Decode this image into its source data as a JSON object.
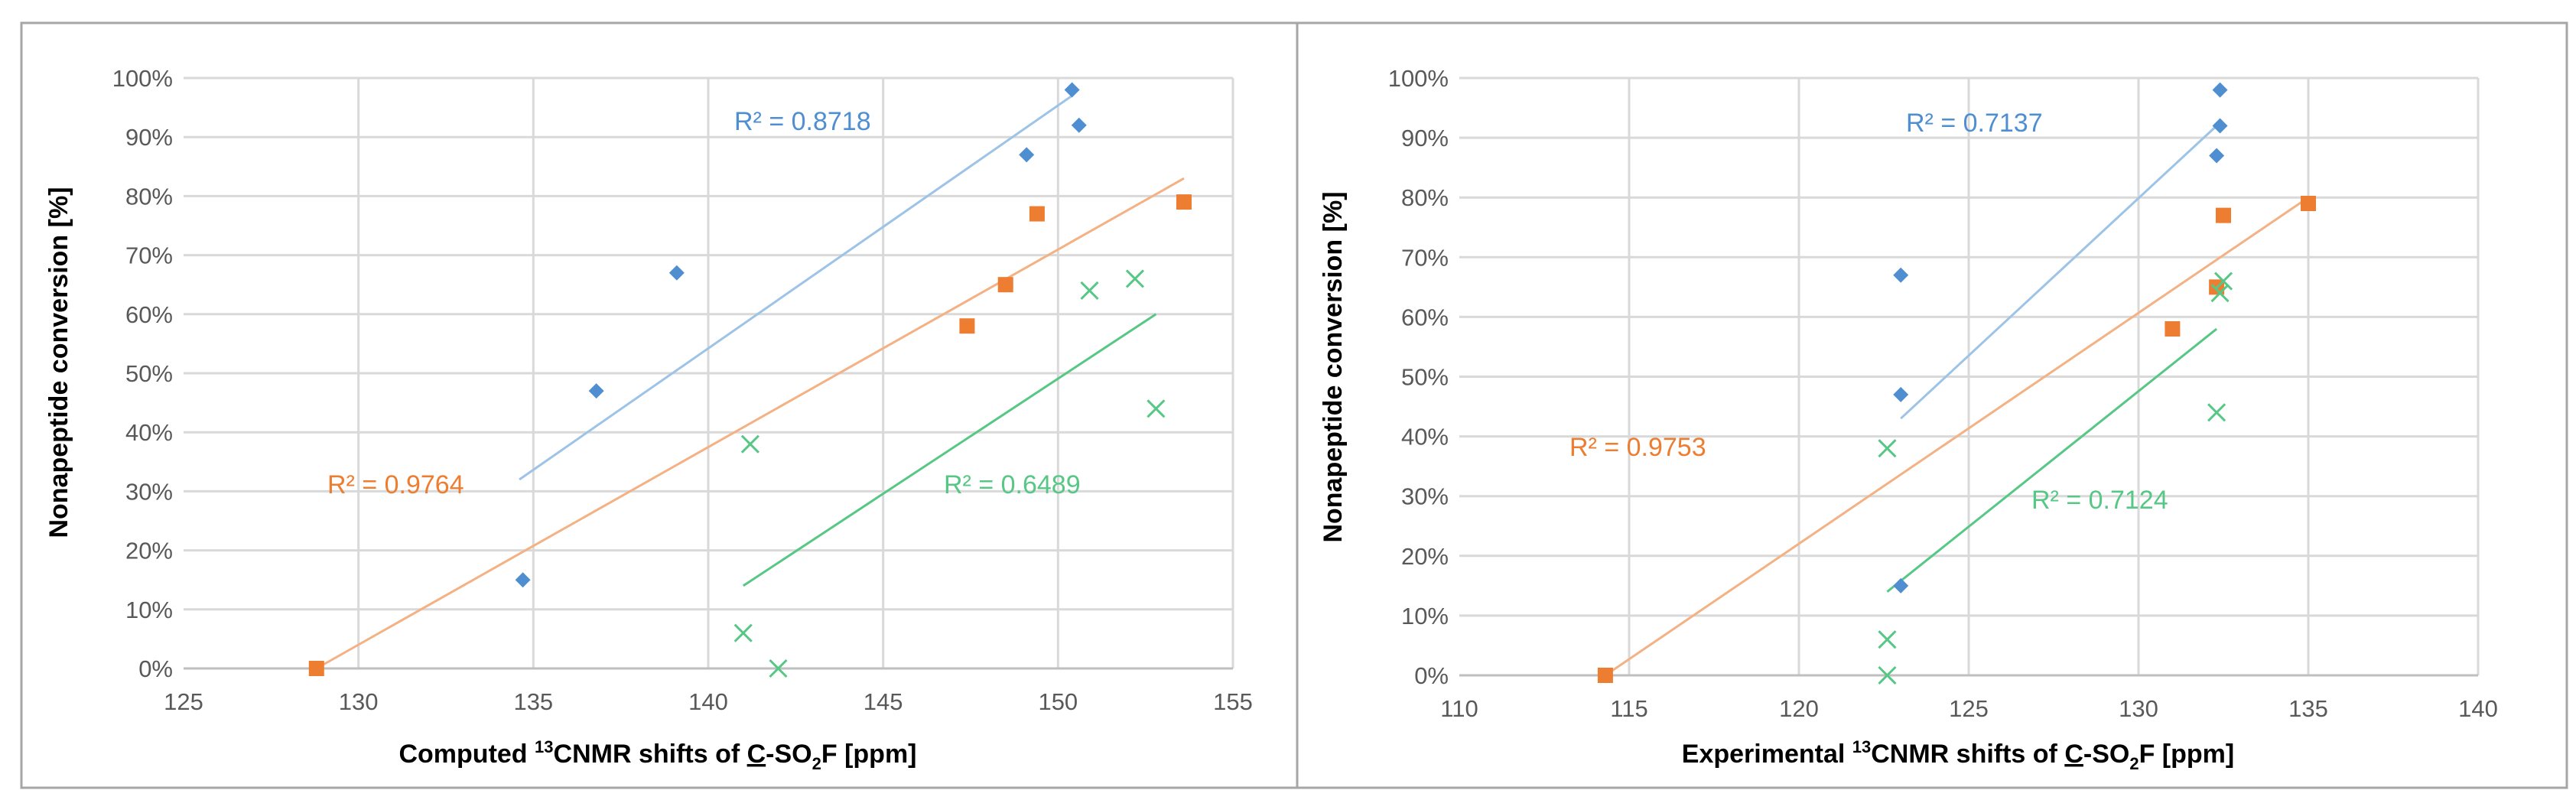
{
  "colors": {
    "blue": "#4f8fd1",
    "orange": "#ed7d31",
    "green": "#57c785",
    "blue_line": "#9dc3e6",
    "orange_line": "#f4b183",
    "green_line": "#57c785"
  },
  "chart_data": [
    {
      "type": "scatter",
      "title": "",
      "xlabel_prefix": "Computed ",
      "xlabel_sup": "13",
      "xlabel_mid": "CNMR shifts of ",
      "xlabel_underlined": "C",
      "xlabel_sub_pre": "-SO",
      "xlabel_sub": "2",
      "xlabel_suffix": "F [ppm]",
      "ylabel": "Nonapeptide conversion [%]",
      "xlim": [
        125,
        155
      ],
      "ylim": [
        0,
        100
      ],
      "xticks": [
        "125",
        "130",
        "135",
        "140",
        "145",
        "150",
        "155"
      ],
      "yticks": [
        "0%",
        "10%",
        "20%",
        "30%",
        "40%",
        "50%",
        "60%",
        "70%",
        "80%",
        "90%",
        "100%"
      ],
      "series": [
        {
          "name": "blue",
          "marker": "diamond",
          "points": [
            [
              134.7,
              15
            ],
            [
              136.8,
              47
            ],
            [
              139.1,
              67
            ],
            [
              149.1,
              87
            ],
            [
              150.4,
              98
            ],
            [
              150.6,
              92
            ]
          ],
          "trend": [
            [
              134.6,
              32
            ],
            [
              150.4,
              97
            ]
          ],
          "r2": "R² = 0.8718"
        },
        {
          "name": "orange",
          "marker": "square",
          "points": [
            [
              128.8,
              0
            ],
            [
              147.4,
              58
            ],
            [
              148.5,
              65
            ],
            [
              149.4,
              77
            ],
            [
              153.6,
              79
            ]
          ],
          "trend": [
            [
              128.8,
              0
            ],
            [
              153.6,
              83
            ]
          ],
          "r2": "R² = 0.9764"
        },
        {
          "name": "green",
          "marker": "x",
          "points": [
            [
              141.0,
              6
            ],
            [
              141.2,
              38
            ],
            [
              142.0,
              0
            ],
            [
              150.9,
              64
            ],
            [
              152.2,
              66
            ],
            [
              152.8,
              44
            ]
          ],
          "trend": [
            [
              141.0,
              14
            ],
            [
              152.8,
              60
            ]
          ],
          "r2": "R² = 0.6489"
        }
      ]
    },
    {
      "type": "scatter",
      "title": "",
      "xlabel_prefix": "Experimental ",
      "xlabel_sup": "13",
      "xlabel_mid": "CNMR shifts of ",
      "xlabel_underlined": "C",
      "xlabel_sub_pre": "-SO",
      "xlabel_sub": "2",
      "xlabel_suffix": "F [ppm]",
      "ylabel": "Nonapeptide conversion [%]",
      "xlim": [
        110,
        140
      ],
      "ylim": [
        0,
        100
      ],
      "xticks": [
        "110",
        "115",
        "120",
        "125",
        "130",
        "135",
        "140"
      ],
      "yticks": [
        "0%",
        "10%",
        "20%",
        "30%",
        "40%",
        "50%",
        "60%",
        "70%",
        "80%",
        "90%",
        "100%"
      ],
      "series": [
        {
          "name": "blue",
          "marker": "diamond",
          "points": [
            [
              123.0,
              15
            ],
            [
              123.0,
              47
            ],
            [
              123.0,
              67
            ],
            [
              132.3,
              87
            ],
            [
              132.4,
              92
            ],
            [
              132.4,
              98
            ]
          ],
          "trend": [
            [
              123.0,
              43
            ],
            [
              132.3,
              92
            ]
          ],
          "r2": "R² = 0.7137"
        },
        {
          "name": "orange",
          "marker": "square",
          "points": [
            [
              114.3,
              0
            ],
            [
              131.0,
              58
            ],
            [
              132.3,
              65
            ],
            [
              132.5,
              77
            ],
            [
              135.0,
              79
            ]
          ],
          "trend": [
            [
              114.3,
              0
            ],
            [
              135.0,
              80
            ]
          ],
          "r2": "R² = 0.9753"
        },
        {
          "name": "green",
          "marker": "x",
          "points": [
            [
              122.6,
              0
            ],
            [
              122.6,
              6
            ],
            [
              122.6,
              38
            ],
            [
              132.3,
              44
            ],
            [
              132.4,
              64
            ],
            [
              132.5,
              66
            ]
          ],
          "trend": [
            [
              122.6,
              14
            ],
            [
              132.3,
              58
            ]
          ],
          "r2": "R² = 0.7124"
        }
      ]
    }
  ]
}
